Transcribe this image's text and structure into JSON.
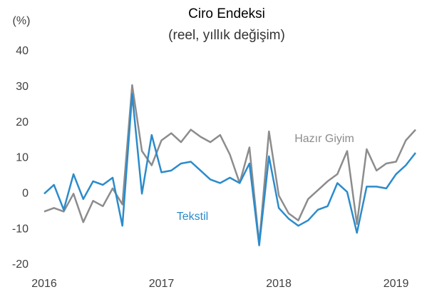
{
  "chart_data": {
    "type": "line",
    "title": "Ciro Endeksi",
    "subtitle": "(reel, yıllık değişim)",
    "y_unit": "(%)",
    "categories": [
      "2016",
      null,
      null,
      null,
      null,
      null,
      null,
      null,
      null,
      null,
      null,
      null,
      "2017",
      null,
      null,
      null,
      null,
      null,
      null,
      null,
      null,
      null,
      null,
      null,
      "2018",
      null,
      null,
      null,
      null,
      null,
      null,
      null,
      null,
      null,
      null,
      null,
      "2019",
      null,
      null
    ],
    "series": [
      {
        "name": "Tekstil",
        "color": "#2b8bcb",
        "values": [
          0,
          2.5,
          -4.5,
          5.5,
          -1.5,
          3.5,
          2.5,
          4.5,
          -9,
          28,
          0,
          16.5,
          6,
          6.5,
          8.5,
          9,
          6.5,
          4,
          3,
          4.5,
          3,
          8.5,
          -14.5,
          10.5,
          -4,
          -7,
          -9,
          -7.5,
          -4.5,
          -3.5,
          3,
          0.5,
          -11,
          2,
          2,
          1.5,
          5.5,
          8,
          11.5
        ]
      },
      {
        "name": "Hazır Giyim",
        "color": "#8c8c8c",
        "values": [
          -5,
          -4,
          -5,
          0,
          -8,
          -2,
          -3.5,
          1.5,
          -3,
          30.5,
          12,
          8,
          15,
          17,
          14.5,
          18,
          16,
          14.5,
          16.5,
          11,
          3,
          13,
          -14,
          17.5,
          -0.5,
          -5.5,
          -7.5,
          -1.5,
          1,
          3.5,
          5.5,
          12,
          -8.5,
          12.5,
          6.5,
          8.5,
          9,
          15,
          18
        ]
      }
    ],
    "ylim": [
      -20,
      40
    ],
    "yticks": [
      -20,
      -10,
      0,
      10,
      20,
      30,
      40
    ],
    "grid": false
  }
}
